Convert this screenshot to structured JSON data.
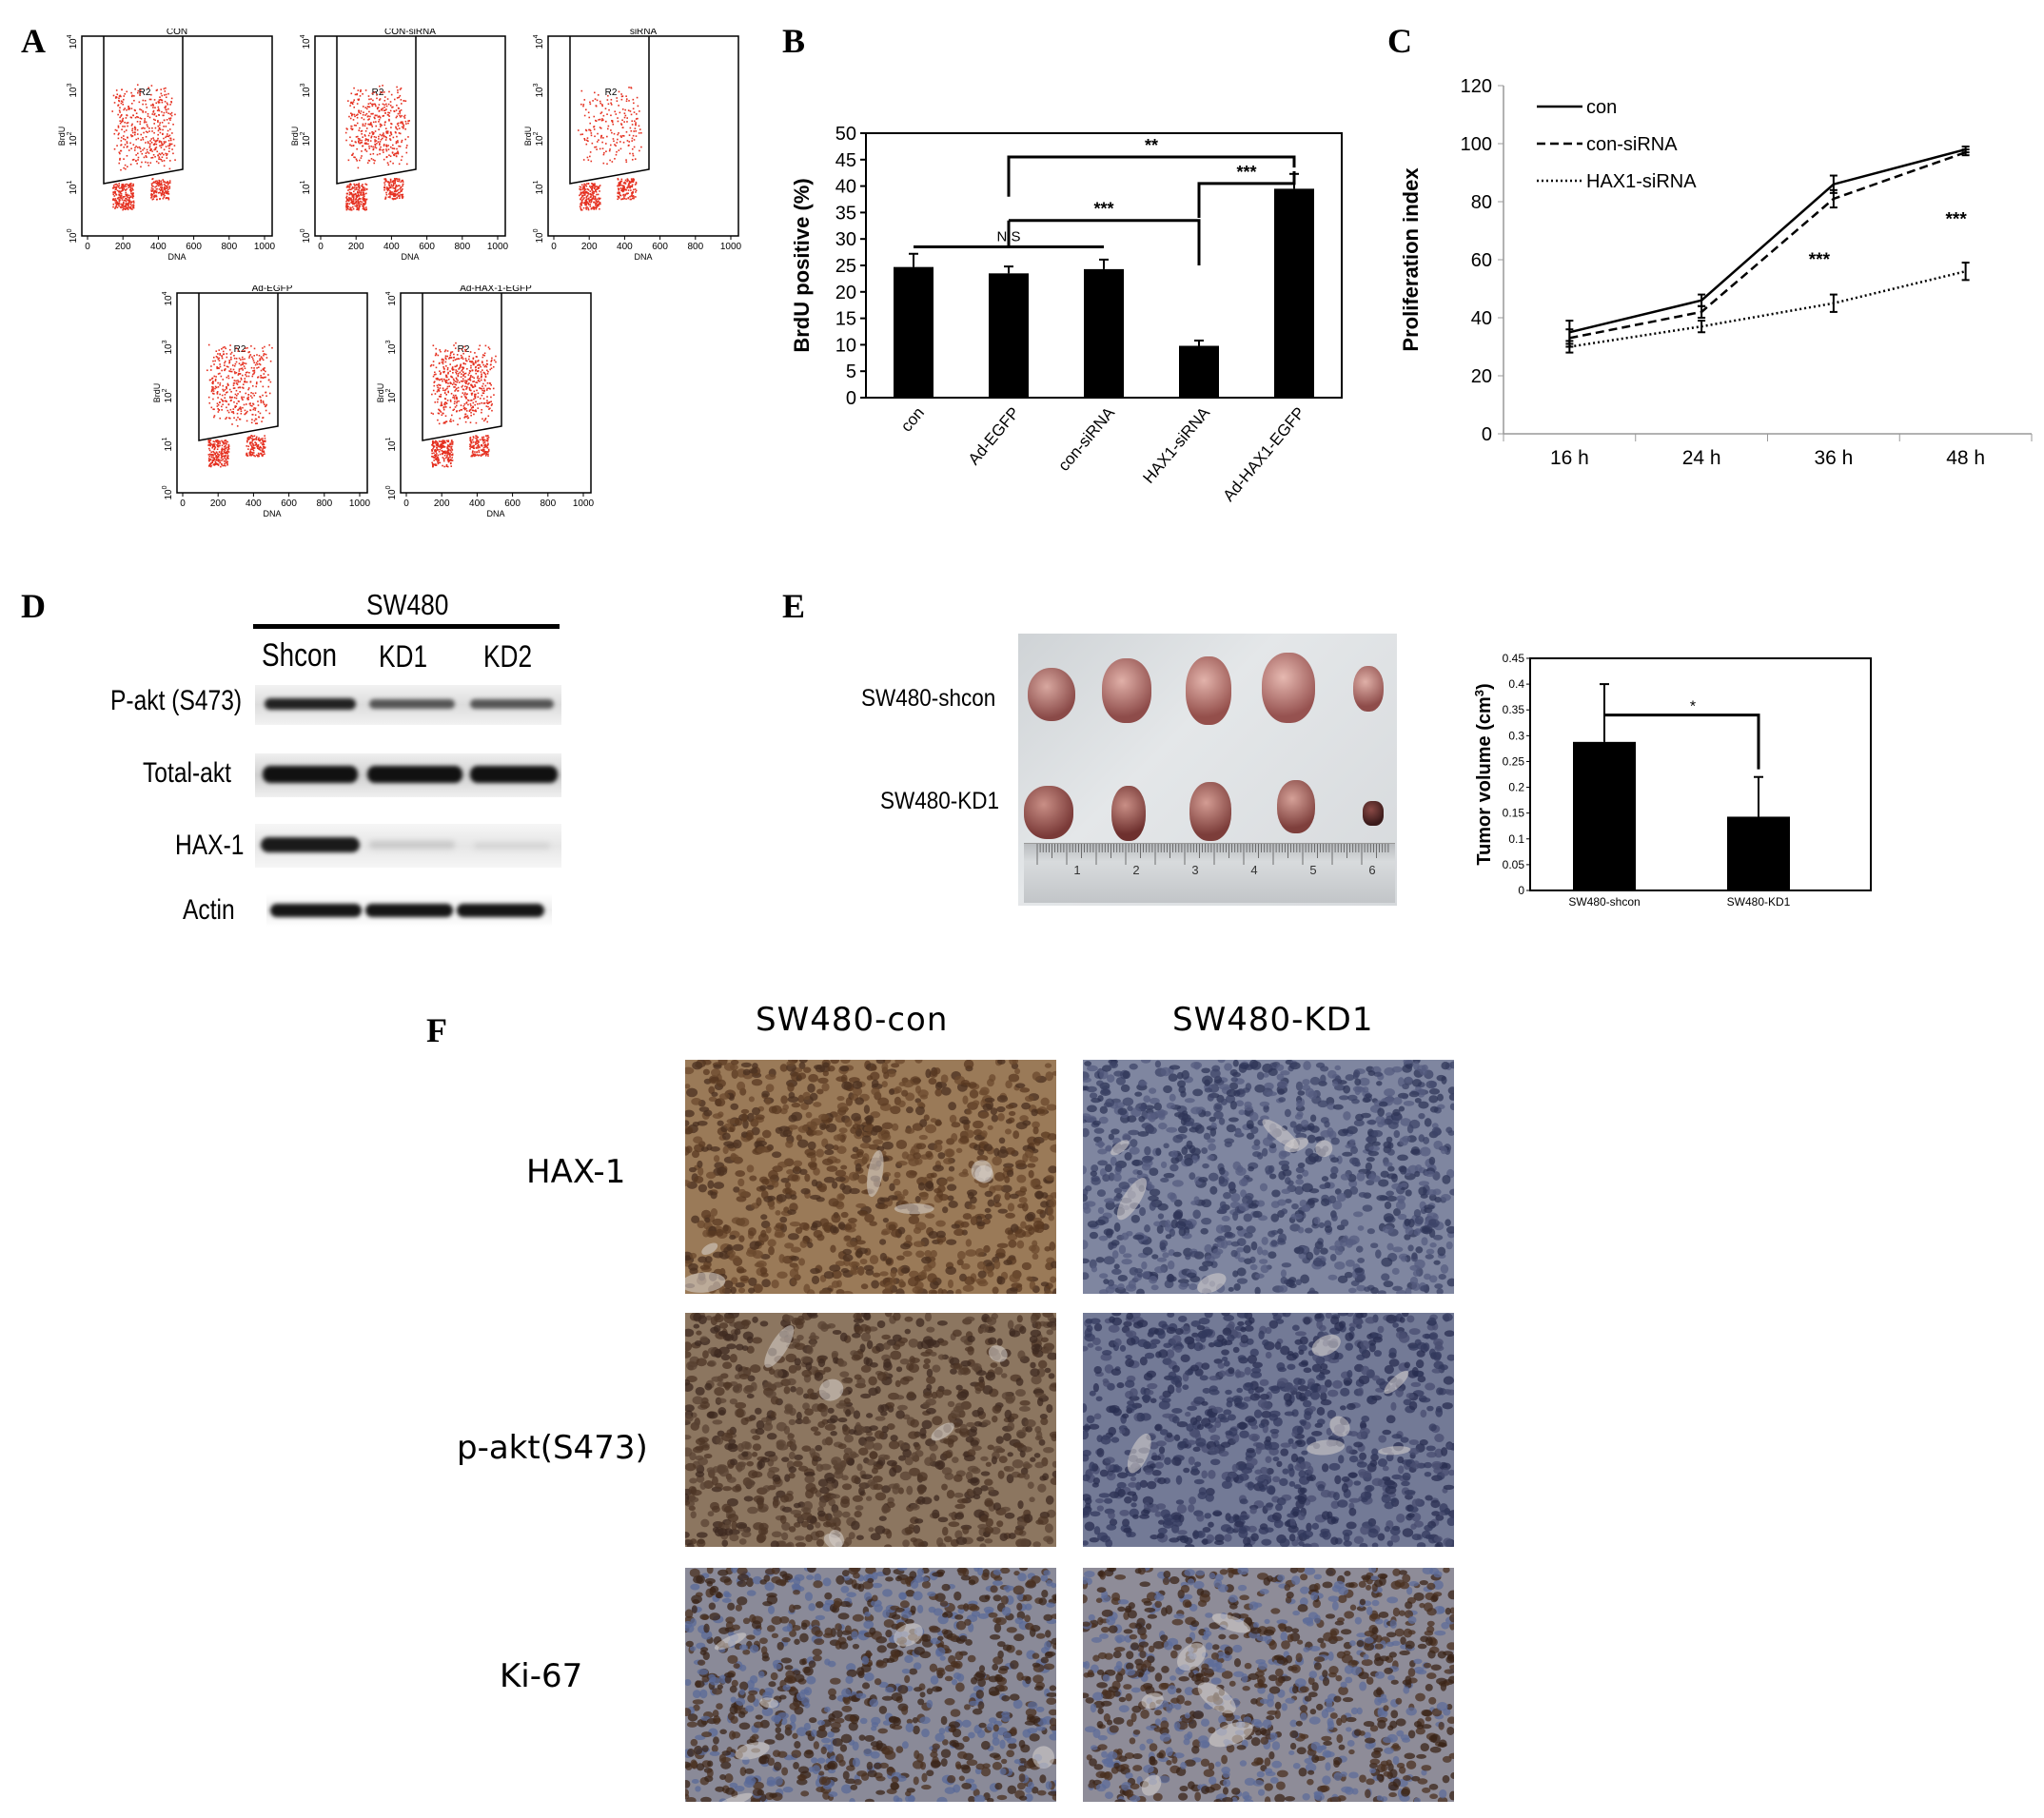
{
  "panels": {
    "A": "A",
    "B": "B",
    "C": "C",
    "D": "D",
    "E": "E",
    "F": "F"
  },
  "flow": {
    "xlabel": "DNA",
    "ylabel": "BrdU",
    "gate": "R2",
    "xticks": [
      "0",
      "200",
      "400",
      "600",
      "800",
      "1000"
    ],
    "yticks": [
      "10",
      "10",
      "10",
      "10",
      "10"
    ],
    "yexp": [
      "0",
      "1",
      "2",
      "3",
      "4"
    ],
    "plots": [
      {
        "title": "CON"
      },
      {
        "title": "CON-siRNA"
      },
      {
        "title": "siRNA"
      },
      {
        "title": "Ad-EGFP"
      },
      {
        "title": "Ad-HAX-1-EGFP"
      }
    ],
    "colors": {
      "dots": "#e53020"
    }
  },
  "chart_data": [
    {
      "panel": "B",
      "type": "bar",
      "categories": [
        "con",
        "Ad-EGFP",
        "con-siRNA",
        "HAX1-siRNA",
        "Ad-HAX1-EGFP"
      ],
      "values": [
        24.7,
        23.5,
        24.3,
        9.8,
        39.5
      ],
      "errors": [
        2.5,
        1.3,
        1.8,
        1.0,
        2.8
      ],
      "ylabel": "BrdU positive (%)",
      "ylim": [
        0,
        50
      ],
      "yticks": [
        0,
        5,
        10,
        15,
        20,
        25,
        30,
        35,
        40,
        45,
        50
      ],
      "annotations": [
        "N.S",
        "***",
        "**",
        "***"
      ]
    },
    {
      "panel": "C",
      "type": "line",
      "x": [
        "16 h",
        "24 h",
        "36 h",
        "48 h"
      ],
      "series": [
        {
          "name": "con",
          "values": [
            35,
            46,
            86,
            98
          ],
          "errors": [
            4,
            2,
            3,
            1
          ],
          "style": "solid"
        },
        {
          "name": "con-siRNA",
          "values": [
            33,
            42,
            81,
            97
          ],
          "errors": [
            3,
            2,
            3,
            1
          ],
          "style": "dashed"
        },
        {
          "name": "HAX1-siRNA",
          "values": [
            30,
            37,
            45,
            56
          ],
          "errors": [
            2,
            2,
            3,
            3
          ],
          "style": "dotted"
        }
      ],
      "ylabel": "Proliferation index",
      "ylim": [
        0,
        120
      ],
      "yticks": [
        0,
        20,
        40,
        60,
        80,
        100,
        120
      ],
      "annotations": [
        "***",
        "***"
      ],
      "legend": "top-left"
    },
    {
      "panel": "E",
      "type": "bar",
      "categories": [
        "SW480-shcon",
        "SW480-KD1"
      ],
      "values": [
        0.288,
        0.143
      ],
      "errors": [
        0.112,
        0.077
      ],
      "ylabel": "Tumor volume (cm",
      "ylabel_sup": "3",
      "ylabel_end": ")",
      "ylim": [
        0,
        0.45
      ],
      "yticks": [
        "0",
        "0.05",
        "0.1",
        "0.15",
        "0.2",
        "0.25",
        "0.3",
        "0.35",
        "0.4",
        "0.45"
      ],
      "annotations": [
        "*"
      ]
    }
  ],
  "blot": {
    "cell_line": "SW480",
    "lanes": [
      "Shcon",
      "KD1",
      "KD2"
    ],
    "rows": [
      "P-akt (S473)",
      "Total-akt",
      "HAX-1",
      "Actin"
    ]
  },
  "tumor": {
    "rows": [
      "SW480-shcon",
      "SW480-KD1"
    ],
    "ruler": [
      "1",
      "2",
      "3",
      "4",
      "5",
      "6"
    ]
  },
  "ihc": {
    "columns": [
      "SW480-con",
      "SW480-KD1"
    ],
    "rows": [
      "HAX-1",
      "p-akt(S473)",
      "Ki-67"
    ]
  }
}
